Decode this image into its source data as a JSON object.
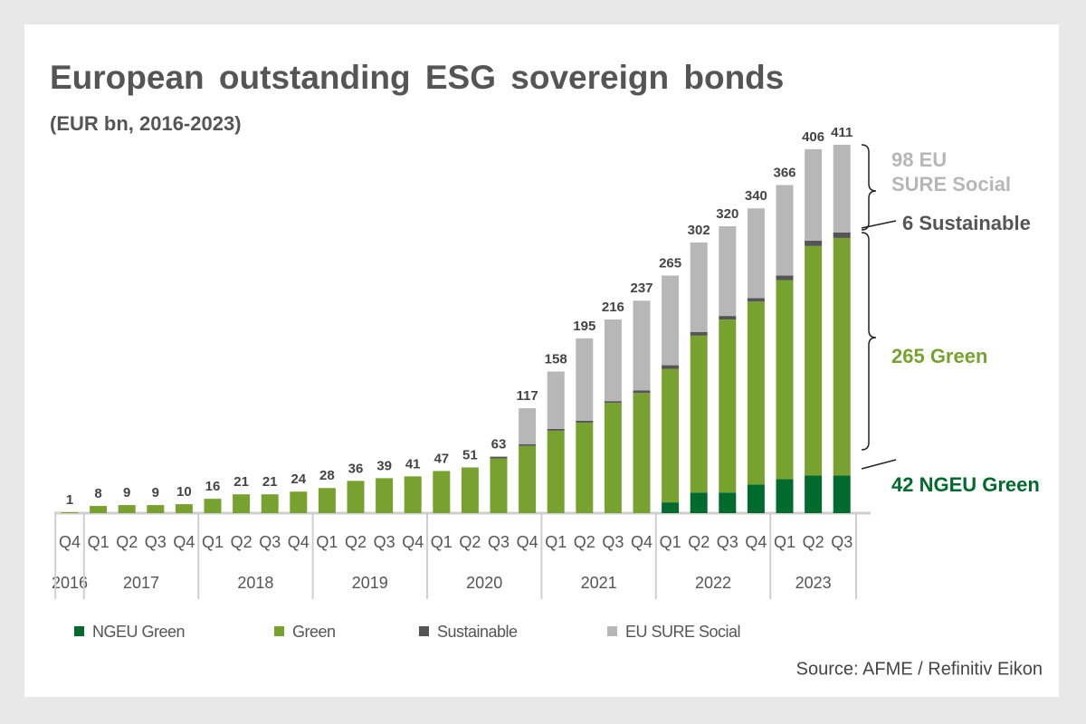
{
  "chart_data": {
    "type": "stacked_bar",
    "title": "European outstanding ESG sovereign bonds",
    "subtitle": "(EUR bn, 2016-2023)",
    "source": "Source: AFME / Refinitiv Eikon",
    "categories": [
      "Q4",
      "Q1",
      "Q2",
      "Q3",
      "Q4",
      "Q1",
      "Q2",
      "Q3",
      "Q4",
      "Q1",
      "Q2",
      "Q3",
      "Q4",
      "Q1",
      "Q2",
      "Q3",
      "Q4",
      "Q1",
      "Q2",
      "Q3",
      "Q4",
      "Q1",
      "Q2",
      "Q3",
      "Q4",
      "Q1",
      "Q2",
      "Q3"
    ],
    "category_groups": [
      {
        "label": "2016",
        "start": 0,
        "end": 0
      },
      {
        "label": "2017",
        "start": 1,
        "end": 4
      },
      {
        "label": "2018",
        "start": 5,
        "end": 8
      },
      {
        "label": "2019",
        "start": 9,
        "end": 12
      },
      {
        "label": "2020",
        "start": 13,
        "end": 16
      },
      {
        "label": "2021",
        "start": 17,
        "end": 20
      },
      {
        "label": "2022",
        "start": 21,
        "end": 24
      },
      {
        "label": "2023",
        "start": 25,
        "end": 27
      }
    ],
    "series": [
      {
        "name": "NGEU Green",
        "color": "#006b2d",
        "values": [
          0,
          0,
          0,
          0,
          0,
          0,
          0,
          0,
          0,
          0,
          0,
          0,
          0,
          0,
          0,
          0,
          0,
          0,
          0,
          0,
          0,
          12,
          23,
          23,
          32,
          38,
          42,
          42
        ]
      },
      {
        "name": "Green",
        "color": "#78a22f",
        "values": [
          1,
          8,
          9,
          9,
          10,
          16,
          21,
          21,
          24,
          28,
          36,
          39,
          41,
          47,
          51,
          61,
          75,
          92,
          101,
          123,
          134,
          149,
          175,
          193,
          204,
          222,
          256,
          265
        ]
      },
      {
        "name": "Sustainable",
        "color": "#555555",
        "values": [
          0,
          0,
          0,
          0,
          0,
          0,
          0,
          0,
          0,
          0,
          0,
          0,
          0,
          0,
          0,
          2,
          2,
          2,
          2,
          2,
          3,
          4,
          4,
          4,
          4,
          5,
          6,
          6
        ]
      },
      {
        "name": "EU SURE Social",
        "color": "#b7b7b7",
        "values": [
          0,
          0,
          0,
          0,
          0,
          0,
          0,
          0,
          0,
          0,
          0,
          0,
          0,
          0,
          0,
          0,
          40,
          64,
          92,
          91,
          100,
          100,
          100,
          100,
          100,
          101,
          102,
          98
        ]
      }
    ],
    "totals": [
      1,
      8,
      9,
      9,
      10,
      16,
      21,
      21,
      24,
      28,
      36,
      39,
      41,
      47,
      51,
      63,
      117,
      158,
      195,
      216,
      237,
      265,
      302,
      320,
      340,
      366,
      406,
      411
    ],
    "annotations": [
      {
        "lines": [
          "98 EU",
          "SURE Social"
        ],
        "color": "#b7b7b7"
      },
      {
        "lines": [
          "6 Sustainable"
        ],
        "color": "#555555"
      },
      {
        "lines": [
          "265 Green"
        ],
        "color": "#78a22f"
      },
      {
        "lines": [
          "42 NGEU Green"
        ],
        "color": "#006b2d"
      }
    ],
    "ylim": [
      0,
      420
    ]
  }
}
